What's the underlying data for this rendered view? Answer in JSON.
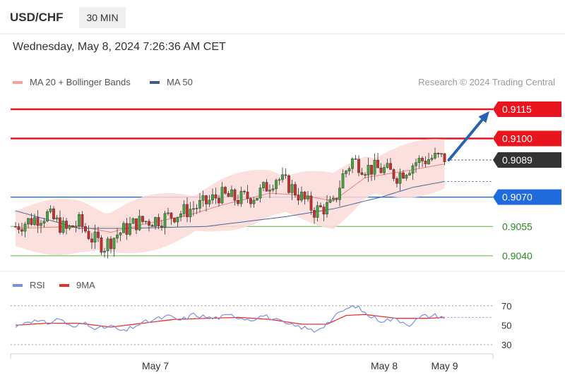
{
  "header": {
    "symbol": "USD/CHF",
    "timeframe": "30 MIN"
  },
  "datetime": "Wednesday, May 8, 2024 7:26:36 AM CET",
  "colors": {
    "resistance": "#e8141e",
    "support": "#1f6bde",
    "supportLine": "#62b046",
    "supportText": "#2a8a21",
    "bullish": "#42a93e",
    "bearish": "#d42a2a",
    "ma50": "#45679c",
    "ma20": "#f07f7f",
    "band": "#fcdad7",
    "rsi": "#7b8fe0",
    "rsi9ma": "#e6332a",
    "arrow": "#2763b5"
  },
  "chart_data": [
    {
      "type": "candlestick",
      "legend": [
        {
          "label": "MA 20 + Bollinger Bands",
          "color": "#f5a09b"
        },
        {
          "label": "MA 50",
          "color": "#3b5b95"
        }
      ],
      "watermark": "Research © 2024 Trading Central",
      "ylim": [
        0.9032,
        0.9124
      ],
      "levels": [
        {
          "value": 0.9115,
          "label": "0.9115",
          "kind": "resistance"
        },
        {
          "value": 0.91,
          "label": "0.9100",
          "kind": "resistance"
        },
        {
          "value": 0.9089,
          "label": "0.9089",
          "kind": "current"
        },
        {
          "value": 0.907,
          "label": "0.9070",
          "kind": "pivot"
        },
        {
          "value": 0.9055,
          "label": "0.9055",
          "kind": "support"
        },
        {
          "value": 0.904,
          "label": "0.9040",
          "kind": "support"
        }
      ],
      "forecast": {
        "from": 0.9089,
        "to": 0.9114
      },
      "close_anchors": [
        [
          0,
          0.9055
        ],
        [
          6,
          0.9059
        ],
        [
          10,
          0.9061
        ],
        [
          16,
          0.9053
        ],
        [
          20,
          0.9057
        ],
        [
          24,
          0.9049
        ],
        [
          28,
          0.9045
        ],
        [
          32,
          0.9051
        ],
        [
          38,
          0.9057
        ],
        [
          46,
          0.9059
        ],
        [
          52,
          0.9062
        ],
        [
          60,
          0.9067
        ],
        [
          64,
          0.9071
        ],
        [
          70,
          0.9069
        ],
        [
          76,
          0.9071
        ],
        [
          82,
          0.908
        ],
        [
          86,
          0.9076
        ],
        [
          90,
          0.907
        ],
        [
          94,
          0.9063
        ],
        [
          100,
          0.9066
        ],
        [
          103,
          0.9081
        ],
        [
          106,
          0.9089
        ],
        [
          110,
          0.9085
        ],
        [
          116,
          0.9084
        ],
        [
          120,
          0.9081
        ],
        [
          126,
          0.9088
        ],
        [
          131,
          0.909
        ],
        [
          135,
          0.909
        ]
      ],
      "ma50_anchors": [
        [
          0,
          0.9063
        ],
        [
          20,
          0.9054
        ],
        [
          35,
          0.9054
        ],
        [
          60,
          0.9055
        ],
        [
          85,
          0.906
        ],
        [
          100,
          0.9064
        ],
        [
          115,
          0.907
        ],
        [
          125,
          0.9075
        ],
        [
          135,
          0.9078
        ]
      ],
      "ma20_anchors": [
        [
          0,
          0.9054
        ],
        [
          20,
          0.9055
        ],
        [
          30,
          0.9052
        ],
        [
          40,
          0.9056
        ],
        [
          55,
          0.9061
        ],
        [
          65,
          0.9066
        ],
        [
          80,
          0.9072
        ],
        [
          90,
          0.9071
        ],
        [
          100,
          0.9068
        ],
        [
          110,
          0.908
        ],
        [
          125,
          0.9084
        ],
        [
          135,
          0.9087
        ]
      ],
      "band_width": 0.0012
    },
    {
      "type": "line",
      "legend": [
        {
          "label": "RSI",
          "color": "#7b8fe0"
        },
        {
          "label": "9MA",
          "color": "#e6332a"
        }
      ],
      "y_ticks": [
        "70",
        "50",
        "30"
      ],
      "ylim": [
        22,
        80
      ],
      "dotted_levels": [
        70,
        30
      ],
      "rsi_anchors": [
        [
          0,
          48
        ],
        [
          4,
          55
        ],
        [
          10,
          52
        ],
        [
          14,
          57
        ],
        [
          18,
          47
        ],
        [
          22,
          53
        ],
        [
          26,
          46
        ],
        [
          30,
          49
        ],
        [
          34,
          43
        ],
        [
          38,
          50
        ],
        [
          44,
          56
        ],
        [
          48,
          59
        ],
        [
          52,
          55
        ],
        [
          56,
          61
        ],
        [
          62,
          57
        ],
        [
          68,
          60
        ],
        [
          74,
          56
        ],
        [
          78,
          60
        ],
        [
          82,
          55
        ],
        [
          86,
          50
        ],
        [
          90,
          48
        ],
        [
          94,
          44
        ],
        [
          98,
          52
        ],
        [
          103,
          65
        ],
        [
          107,
          70
        ],
        [
          111,
          60
        ],
        [
          115,
          55
        ],
        [
          120,
          56
        ],
        [
          124,
          51
        ],
        [
          128,
          59
        ],
        [
          132,
          60
        ],
        [
          135,
          58
        ]
      ],
      "ma9_anchors": [
        [
          0,
          50
        ],
        [
          10,
          52
        ],
        [
          20,
          52
        ],
        [
          30,
          48
        ],
        [
          40,
          52
        ],
        [
          50,
          56
        ],
        [
          60,
          57
        ],
        [
          70,
          58
        ],
        [
          80,
          56
        ],
        [
          90,
          51
        ],
        [
          98,
          51
        ],
        [
          104,
          60
        ],
        [
          110,
          61
        ],
        [
          120,
          57
        ],
        [
          130,
          57
        ],
        [
          135,
          58
        ]
      ]
    }
  ],
  "x_axis": {
    "labels": [
      {
        "text": "May 7",
        "index": 44
      },
      {
        "text": "May 8",
        "index": 116
      },
      {
        "text": "May 9",
        "index": 135
      }
    ]
  }
}
